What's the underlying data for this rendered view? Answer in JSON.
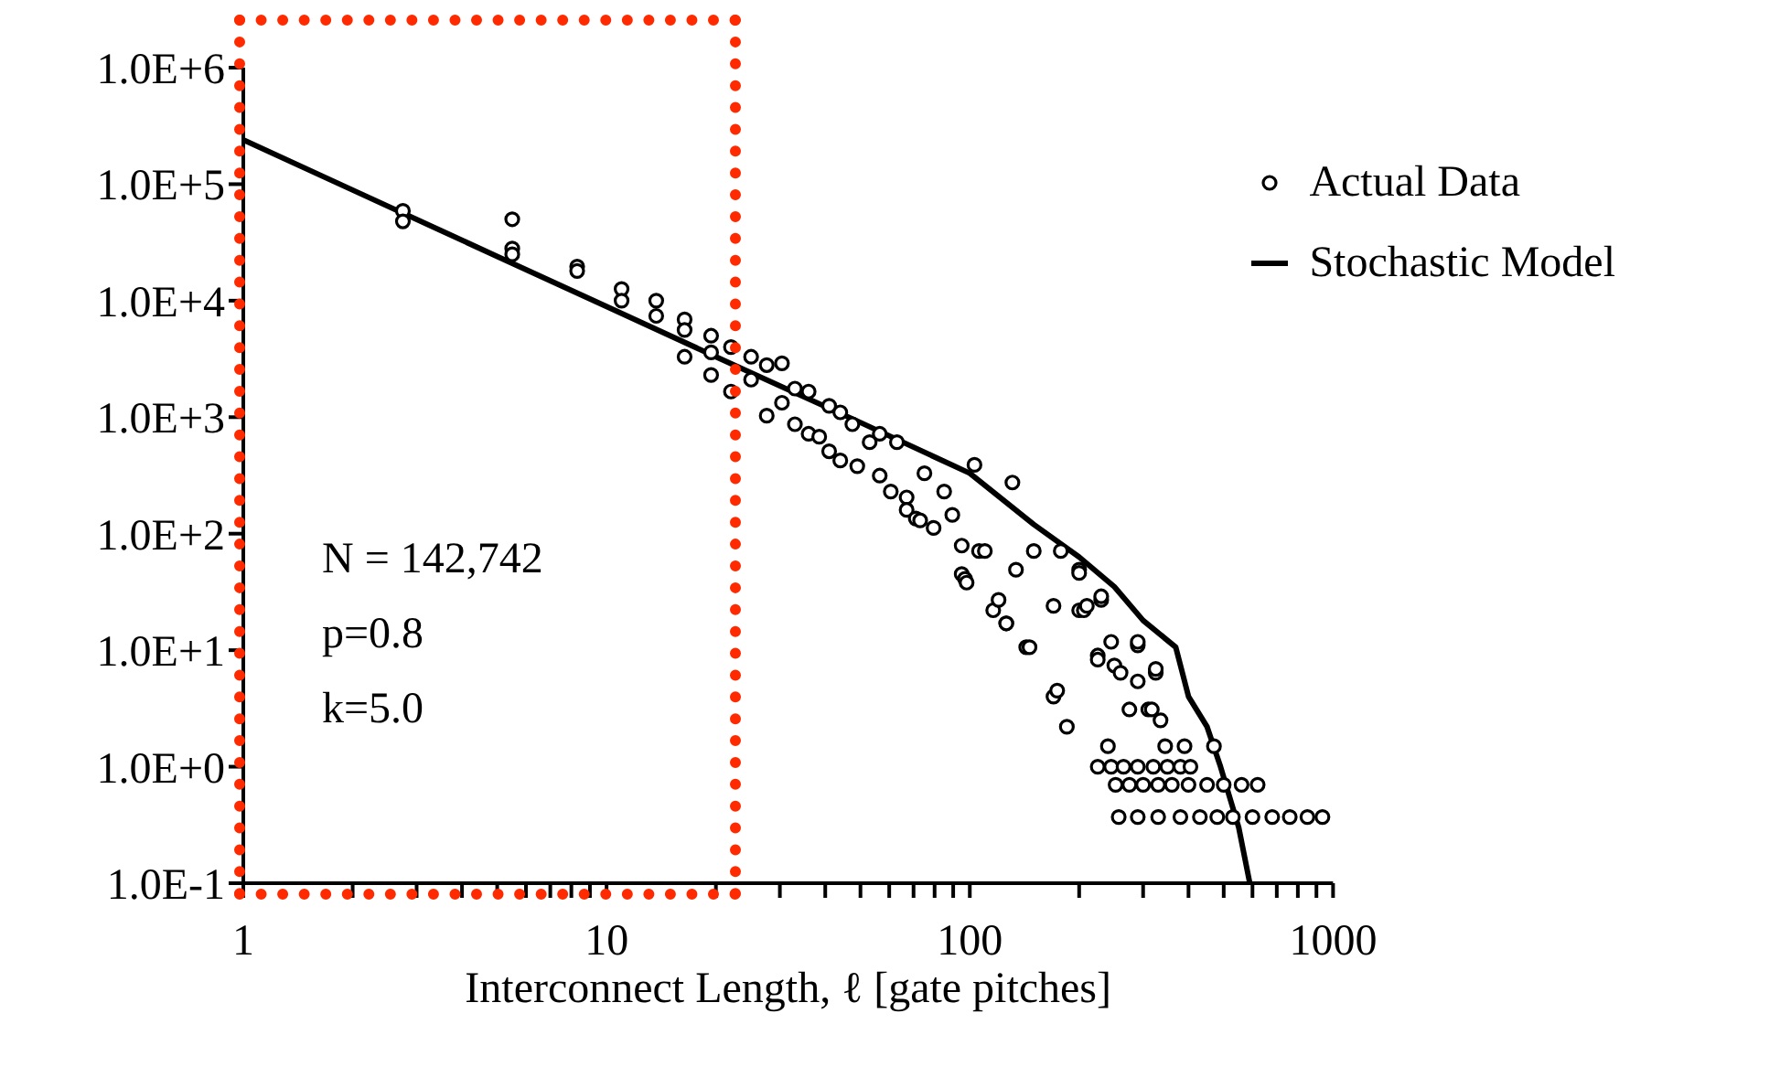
{
  "chart_data": {
    "type": "scatter",
    "xlabel": "Interconnect Length, ℓ [gate pitches]",
    "log": "xy",
    "xlim": [
      1,
      1000
    ],
    "ylim": [
      0.1,
      1000000
    ],
    "xticks": [
      1,
      {
        "value": 2,
        "label": null
      },
      {
        "value": 3,
        "label": null
      },
      {
        "value": 4,
        "label": null
      },
      {
        "value": 5,
        "label": null
      },
      {
        "value": 6,
        "label": null
      },
      {
        "value": 7,
        "label": null
      },
      {
        "value": 8,
        "label": null
      },
      {
        "value": 9,
        "label": null
      },
      10,
      {
        "value": 20,
        "label": null
      },
      {
        "value": 30,
        "label": null
      },
      {
        "value": 40,
        "label": null
      },
      {
        "value": 50,
        "label": null
      },
      {
        "value": 60,
        "label": null
      },
      {
        "value": 70,
        "label": null
      },
      {
        "value": 80,
        "label": null
      },
      {
        "value": 90,
        "label": null
      },
      100,
      {
        "value": 200,
        "label": null
      },
      {
        "value": 300,
        "label": null
      },
      {
        "value": 400,
        "label": null
      },
      {
        "value": 500,
        "label": null
      },
      {
        "value": 600,
        "label": null
      },
      {
        "value": 700,
        "label": null
      },
      {
        "value": 800,
        "label": null
      },
      {
        "value": 900,
        "label": null
      },
      1000
    ],
    "yticks": [
      {
        "value": 0.1,
        "label": "1.0E-1"
      },
      {
        "value": 1,
        "label": "1.0E+0"
      },
      {
        "value": 10,
        "label": "1.0E+1"
      },
      {
        "value": 100,
        "label": "1.0E+2"
      },
      {
        "value": 1000,
        "label": "1.0E+3"
      },
      {
        "value": 10000,
        "label": "1.0E+4"
      },
      {
        "value": 100000,
        "label": "1.0E+5"
      },
      {
        "value": 1000000,
        "label": "1.0E+6"
      }
    ],
    "legend": "top right",
    "marker": "circle",
    "annotations": [
      "N = 142,742",
      "p=0.8",
      "k=5.0"
    ],
    "series": [
      {
        "name": "Actual Data",
        "type": "scatter",
        "color": "#000000",
        "x": [
          2.75,
          2.75,
          5.5,
          5.5,
          5.5,
          8.3,
          8.3,
          11,
          11,
          13.7,
          13.7,
          16.4,
          16.4,
          16.4,
          19.4,
          19.4,
          19.4,
          22,
          22,
          25,
          25,
          27.6,
          27.6,
          30.4,
          30.4,
          33,
          33,
          36,
          36,
          38.5,
          41,
          41,
          44,
          44,
          47.5,
          49,
          53,
          56.5,
          56.5,
          60.6,
          63,
          67,
          67,
          71,
          73,
          75,
          79.5,
          85,
          89.5,
          95,
          95,
          97,
          98,
          103,
          106,
          110,
          116,
          120,
          126,
          126,
          131,
          134,
          143,
          146,
          150,
          170,
          170,
          174,
          178,
          185,
          200,
          200,
          200,
          206,
          210,
          225,
          225,
          230,
          230,
          240,
          245,
          250,
          260,
          275,
          290,
          290,
          290,
          310,
          317,
          325,
          325,
          335,
          345,
          390,
          470,
          225,
          245,
          265,
          290,
          320,
          350,
          380,
          405,
          252,
          275,
          300,
          330,
          360,
          400,
          450,
          500,
          560,
          620,
          257,
          290,
          330,
          380,
          430,
          480,
          530,
          600,
          680,
          760,
          850,
          935
        ],
        "values": [
          59000,
          48000,
          50000,
          28000,
          25000,
          19600,
          18000,
          12600,
          10000,
          10000,
          7400,
          6900,
          5600,
          3300,
          5000,
          3600,
          2300,
          4000,
          1660,
          3300,
          2100,
          2800,
          1030,
          2900,
          1330,
          1760,
          870,
          1660,
          720,
          680,
          1250,
          510,
          425,
          1100,
          870,
          380,
          610,
          720,
          315,
          230,
          610,
          205,
          160,
          135,
          130,
          330,
          112,
          230,
          145,
          79,
          45,
          41,
          38,
          390,
          71,
          71,
          22,
          27,
          17,
          17,
          275,
          49,
          10.6,
          10.6,
          71,
          24,
          4,
          4.5,
          71,
          2.2,
          49,
          22,
          46,
          22,
          24,
          9,
          8.3,
          27,
          29,
          1.5,
          11.8,
          7.4,
          6.4,
          3.1,
          11,
          11.8,
          5.4,
          3.1,
          3.1,
          6.4,
          6.9,
          2.5,
          1.5,
          1.5,
          1.5,
          1,
          1,
          1,
          1,
          1,
          1,
          1,
          1,
          0.7,
          0.7,
          0.7,
          0.7,
          0.7,
          0.7,
          0.7,
          0.7,
          0.7,
          0.7,
          0.37,
          0.37,
          0.37,
          0.37,
          0.37,
          0.37,
          0.37,
          0.37,
          0.37,
          0.37,
          0.37,
          0.37
        ]
      },
      {
        "name": "Stochastic Model",
        "type": "line",
        "color": "#000000",
        "marker": "none",
        "line_style": "solid",
        "x": [
          1,
          2,
          5,
          10,
          20,
          50,
          100,
          150,
          200,
          250,
          300,
          369,
          400,
          450,
          490,
          550,
          590
        ],
        "values": [
          240000,
          89000,
          24000,
          8900,
          3300,
          900,
          330,
          120,
          63,
          35,
          18,
          10.6,
          4,
          2.2,
          1,
          0.3,
          0.1
        ]
      }
    ]
  }
}
